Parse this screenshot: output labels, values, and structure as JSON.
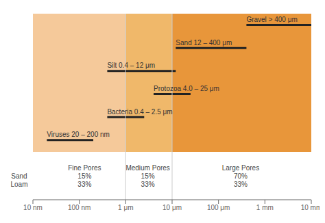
{
  "chart_data": {
    "type": "bar",
    "orientation": "horizontal",
    "log": "x",
    "grid": false,
    "tick_labels": "x",
    "xlim": [
      1e-08,
      0.01
    ],
    "xticks": [
      {
        "value": 1e-08,
        "label": "10 nm"
      },
      {
        "value": 1e-07,
        "label": "100 nm"
      },
      {
        "value": 1e-06,
        "label": "1 μm"
      },
      {
        "value": 1e-05,
        "label": "10 μm"
      },
      {
        "value": 0.0001,
        "label": "100 μm"
      },
      {
        "value": 0.001,
        "label": "1 mm"
      },
      {
        "value": 0.01,
        "label": "10 mm"
      }
    ],
    "categories": [
      "Gravel > 400 μm",
      "Sand 12 – 400 μm",
      "Silt 0.4 – 12 μm",
      "Protozoa 4.0 – 25 μm",
      "Bacteria 0.4 – 2.5 μm",
      "Viruses 20 – 200 nm"
    ],
    "values": [
      [
        0.0004,
        0.01
      ],
      [
        1.2e-05,
        0.0004
      ],
      [
        4e-07,
        1.2e-05
      ],
      [
        4e-06,
        2.5e-05
      ],
      [
        4e-07,
        2.5e-06
      ],
      [
        2e-08,
        2e-07
      ]
    ],
    "color": "#222222",
    "data_labels": true,
    "zones": [
      {
        "xmin": 1e-08,
        "xmax": 1e-06,
        "color": "#f5c99a"
      },
      {
        "xmin": 1e-06,
        "xmax": 1e-05,
        "color": "#f0b86a"
      },
      {
        "xmin": 1e-05,
        "xmax": 0.01,
        "color": "#e8963a"
      }
    ],
    "zone_dividers": [
      1e-06,
      1e-05
    ],
    "annotations": [
      {
        "text": "Fine Pores\n15%\n33%",
        "x": 1.3e-07
      },
      {
        "text": "Medium Pores\n15%\n33%",
        "x": 3e-06
      },
      {
        "text": "Large Pores\n70%\n33%",
        "x": 0.0003
      },
      {
        "text": "Sand\nLoam"
      }
    ]
  }
}
